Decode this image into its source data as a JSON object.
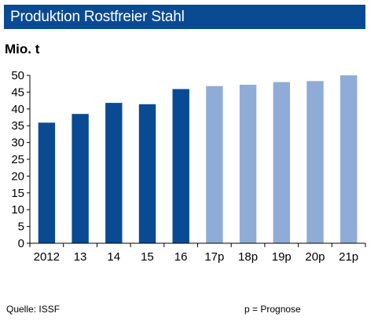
{
  "chart_data": {
    "type": "bar",
    "title": "Produktion Rostfreier Stahl",
    "ylabel": "Mio. t",
    "xlabel": "",
    "categories": [
      "2012",
      "13",
      "14",
      "15",
      "16",
      "17p",
      "18p",
      "19p",
      "20p",
      "21p"
    ],
    "values": [
      35.9,
      38.5,
      41.8,
      41.4,
      45.9,
      46.8,
      47.2,
      48.0,
      48.3,
      50.0
    ],
    "forecast": [
      false,
      false,
      false,
      false,
      false,
      true,
      true,
      true,
      true,
      true
    ],
    "ylim": [
      0,
      50
    ],
    "yticks": [
      0,
      5,
      10,
      15,
      20,
      25,
      30,
      35,
      40,
      45,
      50
    ],
    "grid": false,
    "colors": {
      "actual": "#0a4a93",
      "forecast": "#8eacd6",
      "title_bg": "#0a4a93"
    }
  },
  "footer": {
    "source": "Quelle:  ISSF",
    "note": "p = Prognose"
  }
}
